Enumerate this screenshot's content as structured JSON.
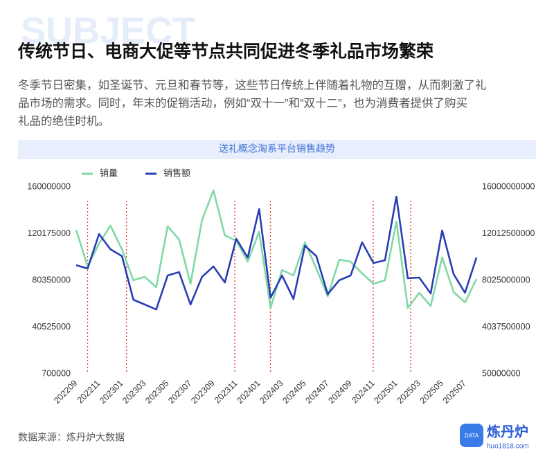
{
  "header": {
    "watermark": "SUBJECT",
    "title": "传统节日、电商大促等节点共同促进冬季礼品市场繁荣",
    "description": [
      "冬季节日密集，如圣诞节、元旦和春节等，这些节日传统上伴随着礼物的互赠，从而刺激了礼",
      "品市场的需求。同时，年末的促销活动，例如“双十一”和“双十二”，也为消费者提供了购买",
      "礼品的绝佳时机。"
    ]
  },
  "chart_data": {
    "type": "line",
    "title": "送礼概念淘系平台销售趋势",
    "categories": [
      "202209",
      null,
      "202211",
      null,
      "202301",
      null,
      "202303",
      null,
      "202305",
      null,
      "202307",
      null,
      "202309",
      null,
      "202311",
      null,
      "202401",
      null,
      "202403",
      null,
      "202405",
      null,
      "202407",
      null,
      "202409",
      null,
      "202411",
      null,
      "202501",
      null,
      "202503",
      null,
      "202505",
      null,
      "202507",
      null
    ],
    "series": [
      {
        "name": "销量",
        "color": "#7fd9a6",
        "values": [
          123400000,
          92200000,
          111600000,
          127000000,
          106900000,
          80400000,
          83300000,
          74500000,
          126400000,
          115200000,
          77400000,
          131700000,
          157000000,
          118700000,
          114000000,
          96300000,
          121700000,
          56800000,
          89200000,
          84500000,
          112800000,
          90400000,
          66800000,
          98000000,
          96300000,
          86300000,
          77400000,
          80400000,
          130500000,
          56800000,
          69700000,
          58500000,
          99800000,
          70300000,
          61500000,
          81500000
        ]
      },
      {
        "name": "销售额",
        "color": "#2a3db3",
        "axis": "y2",
        "values": [
          9320000000,
          9030000000,
          11980000000,
          10680000000,
          10090000000,
          6370000000,
          5960000000,
          5540000000,
          8440000000,
          8730000000,
          5960000000,
          8320000000,
          9210000000,
          7850000000,
          11570000000,
          9970000000,
          14110000000,
          6550000000,
          8440000000,
          6430000000,
          10980000000,
          10090000000,
          6840000000,
          8030000000,
          8440000000,
          11270000000,
          9500000000,
          9740000000,
          15170000000,
          8200000000,
          8260000000,
          6900000000,
          12280000000,
          8560000000,
          6960000000,
          9970000000
        ]
      }
    ],
    "ylim": [
      700000,
      160000000
    ],
    "yticks": [
      700000,
      40525000,
      80350000,
      120175000,
      160000000
    ],
    "y2lim": [
      50000000,
      16000000000
    ],
    "y2ticks": [
      50000000,
      4037500000,
      8025000000,
      12012500000,
      16000000000
    ],
    "grid": false,
    "legend": "top-left"
  },
  "footer": {
    "source": "数据来源：炼丹炉大数据",
    "brand": "炼丹炉",
    "badge": "DATA",
    "url": "huo1818.com"
  }
}
